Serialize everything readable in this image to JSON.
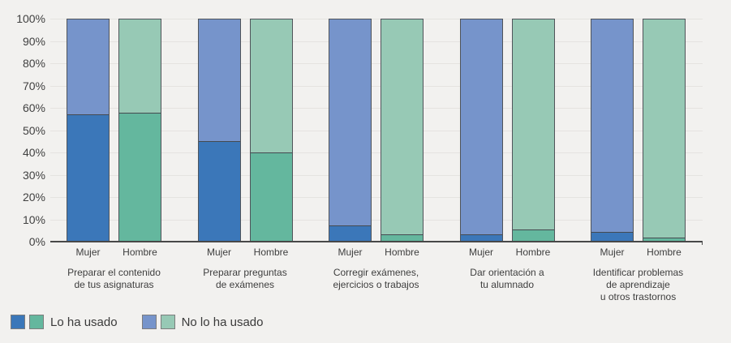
{
  "colors": {
    "background": "#f2f1ef",
    "gridline": "#e5e3e0",
    "axis_line": "#484848",
    "bar_border": "#50545a",
    "text": "#3e3e3e",
    "used_mujer": "#3b77b9",
    "used_hombre": "#64b79e",
    "not_used_mujer": "#7694cb",
    "not_used_hombre": "#97c9b5"
  },
  "chart_data": {
    "type": "bar",
    "variant": "stacked-100-grouped",
    "title": "",
    "xlabel": "",
    "ylabel": "",
    "ylim": [
      0,
      100
    ],
    "grid": true,
    "y_ticks": [
      {
        "value": 0,
        "label": "0%"
      },
      {
        "value": 10,
        "label": "10%"
      },
      {
        "value": 20,
        "label": "20%"
      },
      {
        "value": 30,
        "label": "30%"
      },
      {
        "value": 40,
        "label": "40%"
      },
      {
        "value": 50,
        "label": "50%"
      },
      {
        "value": 60,
        "label": "60%"
      },
      {
        "value": 70,
        "label": "70%"
      },
      {
        "value": 80,
        "label": "80%"
      },
      {
        "value": 90,
        "label": "90%"
      },
      {
        "value": 100,
        "label": "100%"
      }
    ],
    "series_names": [
      "Lo ha usado",
      "No lo ha usado"
    ],
    "groups": [
      {
        "category": "Preparar el contenido de tus asignaturas",
        "category_lines": [
          "Preparar el contenido",
          "de tus asignaturas"
        ],
        "bars": [
          {
            "x_label": "Mujer",
            "lo_ha_usado": 57,
            "no_lo_ha_usado": 43,
            "used_color": "#3b77b9",
            "not_used_color": "#7694cb"
          },
          {
            "x_label": "Hombre",
            "lo_ha_usado": 58,
            "no_lo_ha_usado": 42,
            "used_color": "#64b79e",
            "not_used_color": "#97c9b5"
          }
        ]
      },
      {
        "category": "Preparar preguntas de exámenes",
        "category_lines": [
          "Preparar preguntas",
          "de exámenes"
        ],
        "bars": [
          {
            "x_label": "Mujer",
            "lo_ha_usado": 45,
            "no_lo_ha_usado": 55,
            "used_color": "#3b77b9",
            "not_used_color": "#7694cb"
          },
          {
            "x_label": "Hombre",
            "lo_ha_usado": 40,
            "no_lo_ha_usado": 60,
            "used_color": "#64b79e",
            "not_used_color": "#97c9b5"
          }
        ]
      },
      {
        "category": "Corregir exámenes, ejercicios o trabajos",
        "category_lines": [
          "Corregir exámenes,",
          "ejercicios o trabajos"
        ],
        "bars": [
          {
            "x_label": "Mujer",
            "lo_ha_usado": 7,
            "no_lo_ha_usado": 93,
            "used_color": "#3b77b9",
            "not_used_color": "#7694cb"
          },
          {
            "x_label": "Hombre",
            "lo_ha_usado": 3,
            "no_lo_ha_usado": 97,
            "used_color": "#64b79e",
            "not_used_color": "#97c9b5"
          }
        ]
      },
      {
        "category": "Dar orientación a tu alumnado",
        "category_lines": [
          "Dar orientación a",
          "tu alumnado"
        ],
        "bars": [
          {
            "x_label": "Mujer",
            "lo_ha_usado": 3,
            "no_lo_ha_usado": 97,
            "used_color": "#3b77b9",
            "not_used_color": "#7694cb"
          },
          {
            "x_label": "Hombre",
            "lo_ha_usado": 5,
            "no_lo_ha_usado": 95,
            "used_color": "#64b79e",
            "not_used_color": "#97c9b5"
          }
        ]
      },
      {
        "category": "Identificar problemas de aprendizaje u otros trastornos",
        "category_lines": [
          "Identificar problemas",
          "de aprendizaje",
          "u otros trastornos"
        ],
        "bars": [
          {
            "x_label": "Mujer",
            "lo_ha_usado": 4,
            "no_lo_ha_usado": 96,
            "used_color": "#3b77b9",
            "not_used_color": "#7694cb"
          },
          {
            "x_label": "Hombre",
            "lo_ha_usado": 1.5,
            "no_lo_ha_usado": 98.5,
            "used_color": "#64b79e",
            "not_used_color": "#97c9b5"
          }
        ]
      }
    ],
    "legend": {
      "position": "bottom-left",
      "entries": [
        {
          "label": "Lo ha usado",
          "swatches": [
            "#3b77b9",
            "#64b79e"
          ]
        },
        {
          "label": "No lo ha usado",
          "swatches": [
            "#7694cb",
            "#97c9b5"
          ]
        }
      ]
    }
  }
}
